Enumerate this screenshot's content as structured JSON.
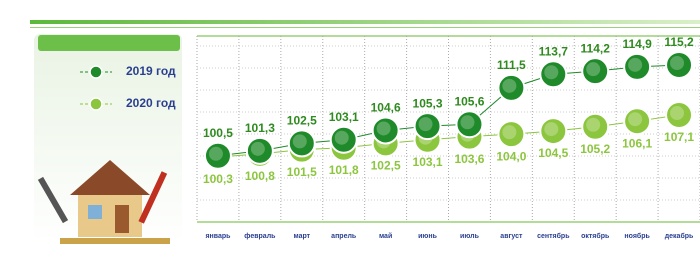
{
  "chart_data": {
    "type": "line",
    "categories": [
      "январь",
      "февраль",
      "март",
      "апрель",
      "май",
      "июнь",
      "июль",
      "август",
      "сентябрь",
      "октябрь",
      "ноябрь",
      "декабрь"
    ],
    "series": [
      {
        "name": "2019 год",
        "color": "#1f8a2a",
        "label_color": "#2f8a1f",
        "values": [
          100.5,
          101.3,
          102.5,
          103.1,
          104.6,
          105.3,
          105.6,
          111.5,
          113.7,
          114.2,
          114.9,
          115.2
        ],
        "value_labels": [
          "100,5",
          "101,3",
          "102,5",
          "103,1",
          "104,6",
          "105,3",
          "105,6",
          "111,5",
          "113,7",
          "114,2",
          "114,9",
          "115,2"
        ]
      },
      {
        "name": "2020 год",
        "color": "#8cc63f",
        "label_color": "#8cc63f",
        "values": [
          100.3,
          100.8,
          101.5,
          101.8,
          102.5,
          103.1,
          103.6,
          104.0,
          104.5,
          105.2,
          106.1,
          107.1
        ],
        "value_labels": [
          "100,3",
          "100,8",
          "101,5",
          "101,8",
          "102,5",
          "103,1",
          "103,6",
          "104,0",
          "104,5",
          "105,2",
          "106,1",
          "107,1"
        ]
      }
    ]
  }
}
